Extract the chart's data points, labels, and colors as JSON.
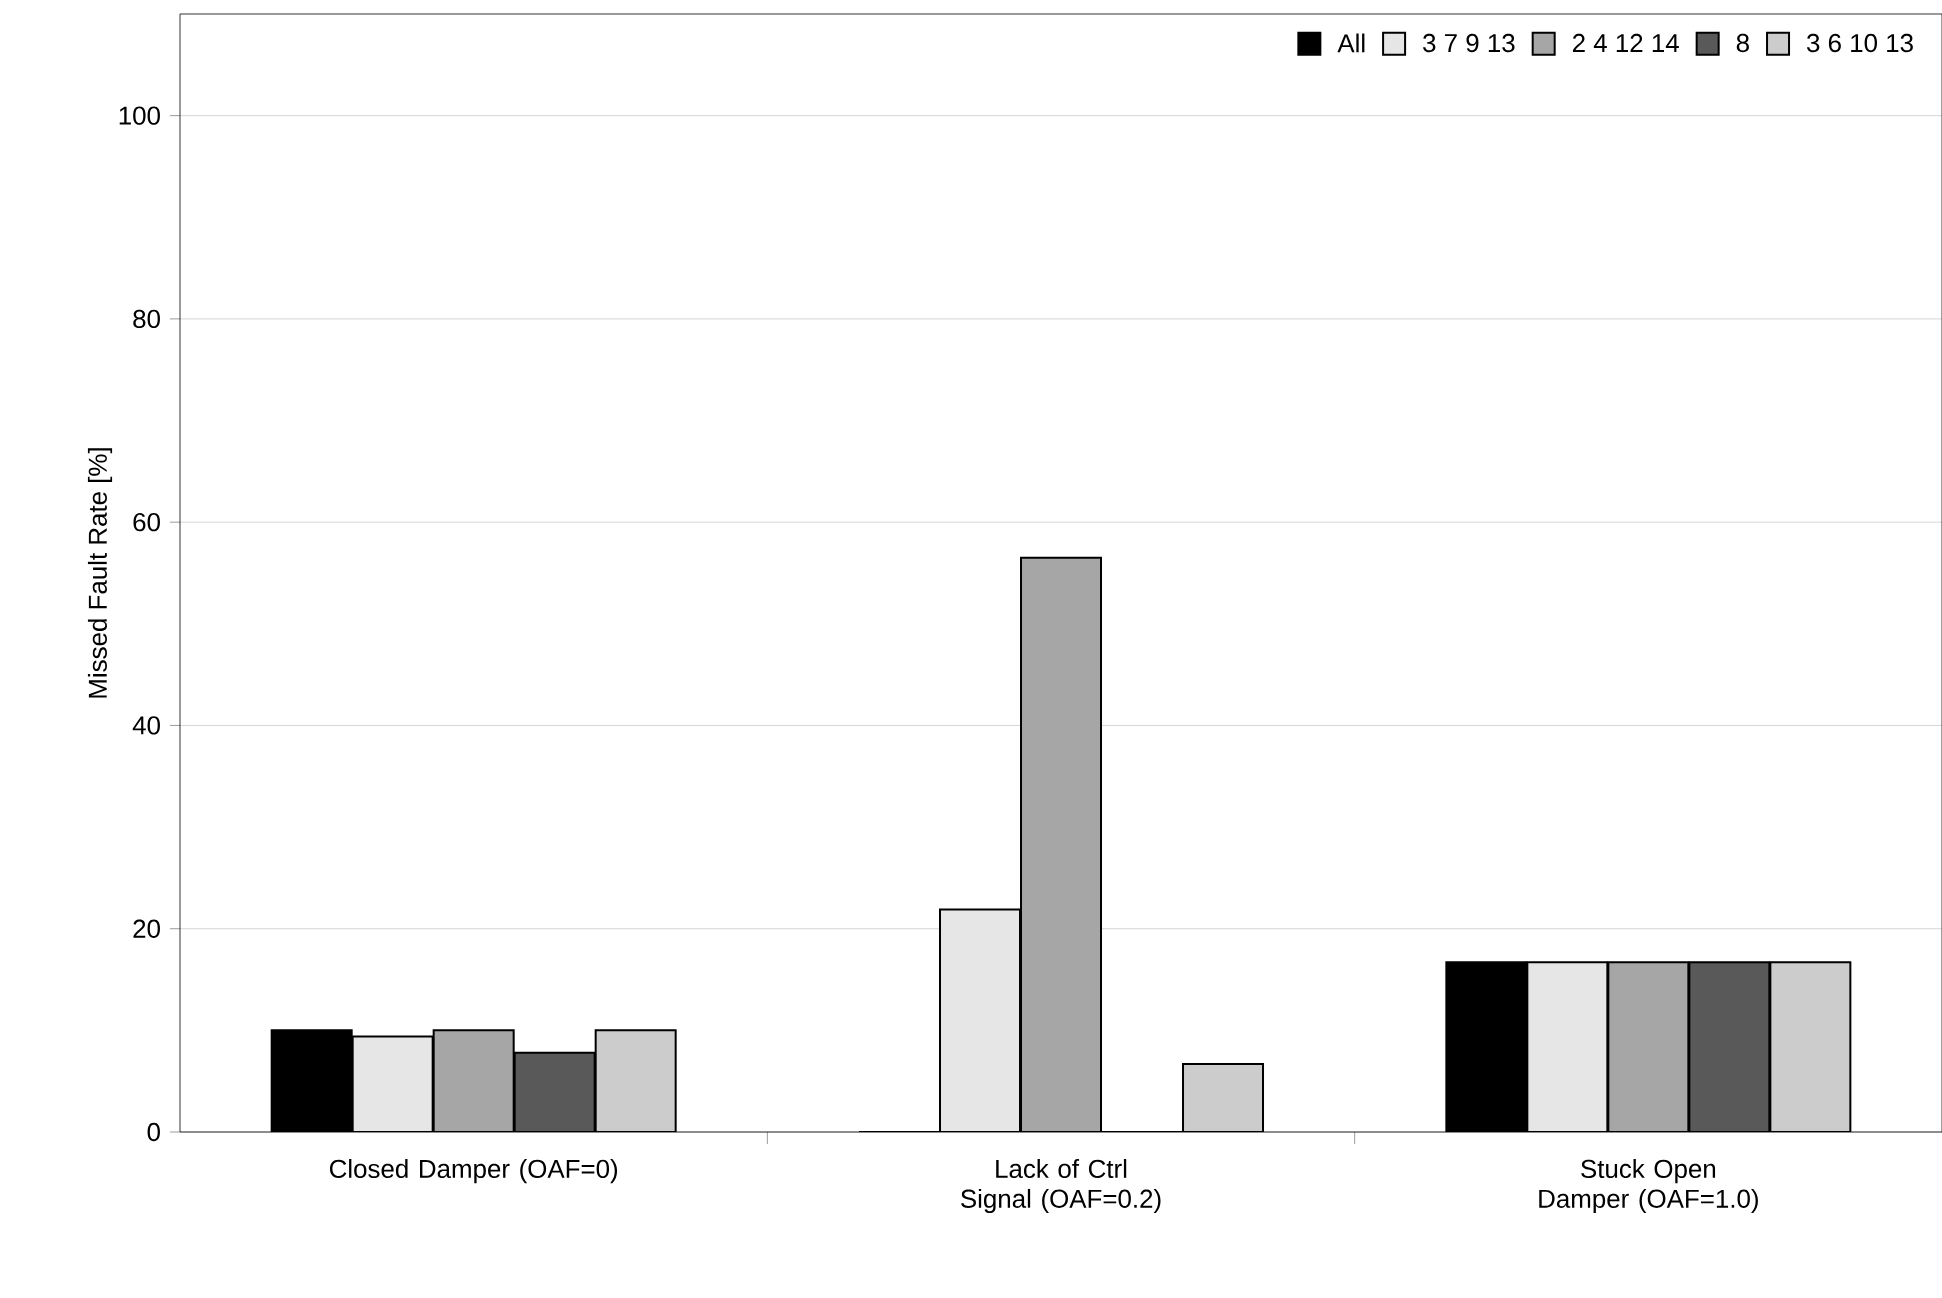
{
  "chart_data": {
    "type": "bar",
    "ylabel": "Missed Fault Rate [%]",
    "categories": [
      "Closed Damper (OAF=0)",
      "Lack of Ctrl Signal (OAF=0.2)",
      "Stuck Open Damper (OAF=1.0)"
    ],
    "series": [
      {
        "name": "All",
        "color": "#000000",
        "values": [
          10,
          0,
          16.7
        ]
      },
      {
        "name": "3 7 9 13",
        "color": "#e6e6e6",
        "values": [
          9.4,
          21.9,
          16.7
        ]
      },
      {
        "name": "2 4 12 14",
        "color": "#a6a6a6",
        "values": [
          10,
          56.5,
          16.7
        ]
      },
      {
        "name": "8",
        "color": "#595959",
        "values": [
          7.8,
          0,
          16.7
        ]
      },
      {
        "name": "3 6 10 13",
        "color": "#cccccc",
        "values": [
          10,
          6.7,
          16.7
        ]
      }
    ],
    "ylim": [
      0,
      110
    ],
    "yticks": [
      0,
      20,
      40,
      60,
      80,
      100
    ],
    "grid": "y",
    "legend": "top right"
  }
}
